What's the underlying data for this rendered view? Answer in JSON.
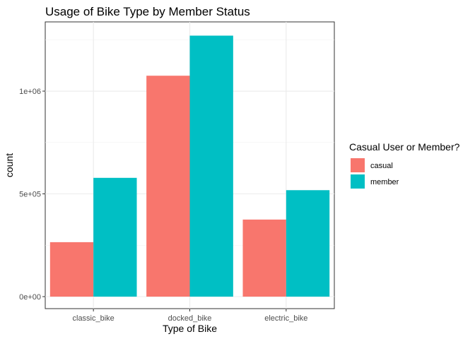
{
  "chart_data": {
    "type": "bar",
    "title": "Usage of Bike Type by Member Status",
    "xlabel": "Type of Bike",
    "ylabel": "count",
    "categories": [
      "classic_bike",
      "docked_bike",
      "electric_bike"
    ],
    "series": [
      {
        "name": "casual",
        "color": "#F8766D",
        "values": [
          265000,
          1075000,
          375000
        ]
      },
      {
        "name": "member",
        "color": "#00BFC4",
        "values": [
          578000,
          1270000,
          518000
        ]
      }
    ],
    "ylim": [
      0,
      1330000
    ],
    "y_ticks": [
      {
        "value": 0,
        "label": "0e+00"
      },
      {
        "value": 500000,
        "label": "5e+05"
      },
      {
        "value": 1000000,
        "label": "1e+06"
      }
    ],
    "legend": {
      "title": "Casual User or Member?",
      "position": "right"
    },
    "grid": true
  }
}
